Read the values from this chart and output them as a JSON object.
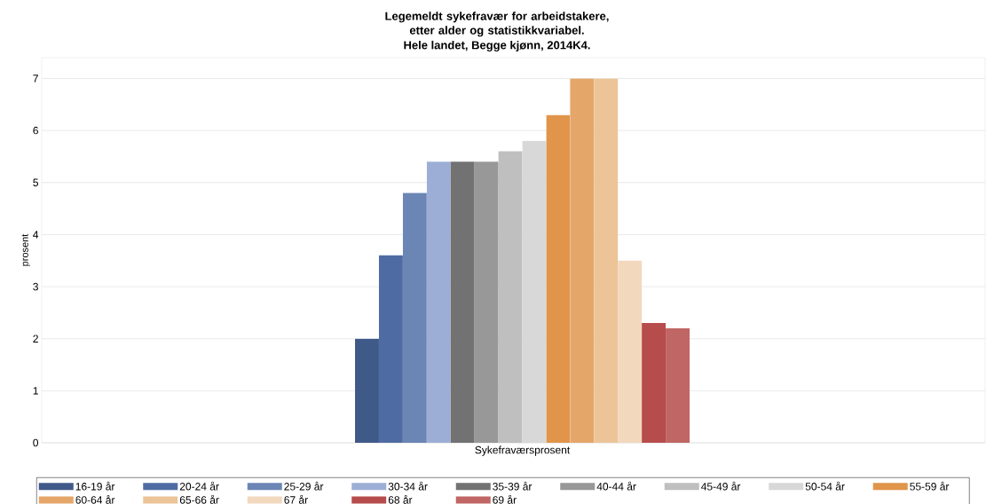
{
  "chart_data": {
    "type": "bar",
    "title": "Legemeldt sykefravær for arbeidstakere, etter alder og statistikkvariabel.",
    "subtitle": "Hele landet, Begge kjønn, 2014K4.",
    "ylabel": "prosent",
    "categories": [
      "Sykefraværsprosent"
    ],
    "series": [
      {
        "name": "16-19 år",
        "color": "#3f5a88",
        "values": [
          2
        ]
      },
      {
        "name": "20-24 år",
        "color": "#4e6ca3",
        "values": [
          3.6
        ]
      },
      {
        "name": "25-29 år",
        "color": "#6b86b5",
        "values": [
          4.8
        ]
      },
      {
        "name": "30-34 år",
        "color": "#9daed6",
        "values": [
          5.4
        ]
      },
      {
        "name": "35-39 år",
        "color": "#727272",
        "values": [
          5.4
        ]
      },
      {
        "name": "40-44 år",
        "color": "#989898",
        "values": [
          5.4
        ]
      },
      {
        "name": "45-49 år",
        "color": "#bfbfbf",
        "values": [
          5.6
        ]
      },
      {
        "name": "50-54 år",
        "color": "#d8d8d8",
        "values": [
          5.8
        ]
      },
      {
        "name": "55-59 år",
        "color": "#e0954a",
        "values": [
          6.3
        ]
      },
      {
        "name": "60-64 år",
        "color": "#e5a66a",
        "values": [
          7
        ]
      },
      {
        "name": "65-66 år",
        "color": "#ecc497",
        "values": [
          7
        ]
      },
      {
        "name": "67 år",
        "color": "#f2d8bd",
        "values": [
          3.5
        ]
      },
      {
        "name": "68 år",
        "color": "#b74c4c",
        "values": [
          2.3
        ]
      },
      {
        "name": "69 år",
        "color": "#c06664",
        "values": [
          2.2
        ]
      }
    ],
    "ylim": [
      0,
      7.4
    ],
    "yticks": [
      0,
      1,
      2,
      3,
      4,
      5,
      6,
      7
    ],
    "grid": "y",
    "legend": "bottom"
  }
}
